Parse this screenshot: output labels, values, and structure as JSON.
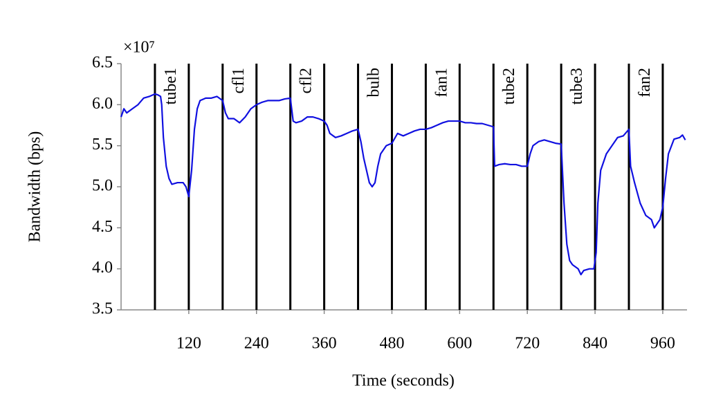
{
  "chart_data": {
    "type": "line",
    "multiplier": "×10⁷",
    "xlabel": "Time (seconds)",
    "ylabel": "Bandwidth (bps)",
    "xlim": [
      0,
      1003
    ],
    "ylim": [
      3.5,
      6.5
    ],
    "xticks": [
      120,
      240,
      360,
      480,
      600,
      720,
      840,
      960
    ],
    "yticks": [
      3.5,
      {
        "value": 4,
        "label": "4.0"
      },
      4.5,
      {
        "value": 5,
        "label": "5.0"
      },
      5.5,
      {
        "value": 6,
        "label": "6.0"
      },
      6.5
    ],
    "events": [
      {
        "label": "tube1",
        "start": 60,
        "end": 120
      },
      {
        "label": "cfl1",
        "start": 180,
        "end": 240
      },
      {
        "label": "cfl2",
        "start": 300,
        "end": 360
      },
      {
        "label": "bulb",
        "start": 420,
        "end": 480
      },
      {
        "label": "fan1",
        "start": 540,
        "end": 600
      },
      {
        "label": "tube2",
        "start": 660,
        "end": 720
      },
      {
        "label": "tube3",
        "start": 780,
        "end": 840
      },
      {
        "label": "fan2",
        "start": 900,
        "end": 960
      }
    ],
    "x": [
      0,
      5,
      10,
      20,
      30,
      40,
      50,
      60,
      65,
      70,
      72,
      75,
      80,
      85,
      90,
      100,
      110,
      115,
      120,
      125,
      130,
      135,
      140,
      150,
      160,
      170,
      180,
      185,
      190,
      200,
      210,
      220,
      230,
      240,
      250,
      260,
      270,
      280,
      290,
      300,
      305,
      310,
      320,
      330,
      340,
      350,
      360,
      365,
      370,
      380,
      390,
      400,
      410,
      420,
      425,
      430,
      440,
      445,
      450,
      455,
      460,
      470,
      480,
      490,
      500,
      510,
      520,
      530,
      540,
      550,
      560,
      570,
      580,
      590,
      600,
      610,
      620,
      630,
      640,
      650,
      660,
      662,
      670,
      680,
      690,
      700,
      710,
      720,
      725,
      730,
      740,
      750,
      760,
      770,
      780,
      785,
      790,
      795,
      800,
      810,
      815,
      820,
      830,
      838,
      842,
      845,
      850,
      860,
      870,
      880,
      890,
      900,
      903,
      910,
      920,
      930,
      940,
      945,
      950,
      955,
      960,
      965,
      970,
      980,
      990,
      995,
      1000
    ],
    "series": [
      {
        "name": "Bandwidth",
        "color": "#1010e0",
        "values": [
          5.85,
          5.95,
          5.9,
          5.95,
          6.0,
          6.08,
          6.1,
          6.13,
          6.12,
          6.1,
          6.0,
          5.6,
          5.25,
          5.1,
          5.03,
          5.05,
          5.05,
          5.0,
          4.88,
          5.2,
          5.7,
          5.95,
          6.05,
          6.08,
          6.08,
          6.1,
          6.05,
          5.9,
          5.83,
          5.83,
          5.78,
          5.85,
          5.95,
          6.0,
          6.03,
          6.05,
          6.05,
          6.05,
          6.07,
          6.08,
          5.8,
          5.78,
          5.8,
          5.85,
          5.85,
          5.83,
          5.8,
          5.75,
          5.65,
          5.6,
          5.62,
          5.65,
          5.68,
          5.7,
          5.55,
          5.35,
          5.05,
          5.0,
          5.05,
          5.25,
          5.4,
          5.5,
          5.53,
          5.65,
          5.62,
          5.65,
          5.68,
          5.7,
          5.7,
          5.72,
          5.75,
          5.78,
          5.8,
          5.8,
          5.8,
          5.78,
          5.78,
          5.77,
          5.77,
          5.75,
          5.73,
          5.25,
          5.27,
          5.28,
          5.27,
          5.27,
          5.25,
          5.25,
          5.4,
          5.5,
          5.55,
          5.57,
          5.55,
          5.53,
          5.52,
          4.8,
          4.3,
          4.1,
          4.05,
          4.0,
          3.93,
          3.98,
          4.0,
          4.0,
          4.2,
          4.8,
          5.2,
          5.4,
          5.5,
          5.6,
          5.62,
          5.7,
          5.25,
          5.05,
          4.8,
          4.65,
          4.6,
          4.5,
          4.55,
          4.6,
          4.75,
          5.1,
          5.4,
          5.58,
          5.6,
          5.63,
          5.57
        ]
      }
    ]
  }
}
